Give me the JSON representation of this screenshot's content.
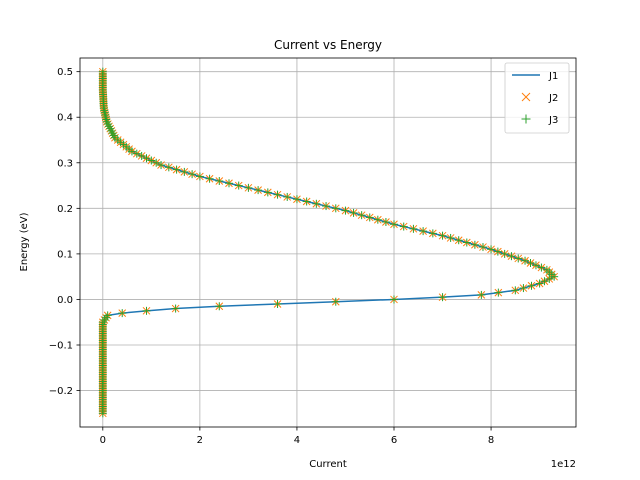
{
  "chart_data": {
    "type": "line",
    "title": "Current vs Energy",
    "xlabel": "Current",
    "ylabel": "Energy (eV)",
    "x_offset_label": "1e12",
    "xlim": [
      -0.47,
      9.75
    ],
    "ylim": [
      -0.28,
      0.53
    ],
    "x_scale": 1000000000000.0,
    "x_ticks": [
      0,
      2,
      4,
      6,
      8
    ],
    "x_tick_labels": [
      "0",
      "2",
      "4",
      "6",
      "8"
    ],
    "y_ticks": [
      -0.2,
      -0.1,
      0.0,
      0.1,
      0.2,
      0.3,
      0.4,
      0.5
    ],
    "y_tick_labels": [
      "−0.2",
      "−0.1",
      "0.0",
      "0.1",
      "0.2",
      "0.3",
      "0.4",
      "0.5"
    ],
    "grid": true,
    "legend_placement": "top-right",
    "legend": [
      "J1",
      "J2",
      "J3"
    ],
    "series": [
      {
        "name": "J1",
        "style": "line",
        "color": "#1f77b4"
      },
      {
        "name": "J2",
        "style": "x-marker",
        "color": "#ff7f0e"
      },
      {
        "name": "J3",
        "style": "plus-marker",
        "color": "#2ca02c"
      }
    ],
    "curve_points": [
      {
        "current": 0.0,
        "energy": -0.25
      },
      {
        "current": 0.0,
        "energy": -0.15
      },
      {
        "current": 0.0,
        "energy": -0.05
      },
      {
        "current": 0.1,
        "energy": -0.035
      },
      {
        "current": 0.4,
        "energy": -0.03
      },
      {
        "current": 0.9,
        "energy": -0.025
      },
      {
        "current": 1.5,
        "energy": -0.02
      },
      {
        "current": 2.4,
        "energy": -0.015
      },
      {
        "current": 3.6,
        "energy": -0.01
      },
      {
        "current": 4.8,
        "energy": -0.005
      },
      {
        "current": 6.0,
        "energy": 0.0
      },
      {
        "current": 7.0,
        "energy": 0.005
      },
      {
        "current": 7.8,
        "energy": 0.01
      },
      {
        "current": 8.5,
        "energy": 0.02
      },
      {
        "current": 9.0,
        "energy": 0.035
      },
      {
        "current": 9.3,
        "energy": 0.05
      },
      {
        "current": 9.15,
        "energy": 0.065
      },
      {
        "current": 8.7,
        "energy": 0.085
      },
      {
        "current": 8.0,
        "energy": 0.11
      },
      {
        "current": 7.0,
        "energy": 0.14
      },
      {
        "current": 6.0,
        "energy": 0.165
      },
      {
        "current": 5.0,
        "energy": 0.195
      },
      {
        "current": 4.0,
        "energy": 0.22
      },
      {
        "current": 3.0,
        "energy": 0.245
      },
      {
        "current": 2.0,
        "energy": 0.27
      },
      {
        "current": 1.2,
        "energy": 0.295
      },
      {
        "current": 0.6,
        "energy": 0.325
      },
      {
        "current": 0.25,
        "energy": 0.355
      },
      {
        "current": 0.08,
        "energy": 0.39
      },
      {
        "current": 0.02,
        "energy": 0.42
      },
      {
        "current": 0.0,
        "energy": 0.46
      },
      {
        "current": 0.0,
        "energy": 0.5
      }
    ],
    "marker_energy_step": 0.005
  }
}
